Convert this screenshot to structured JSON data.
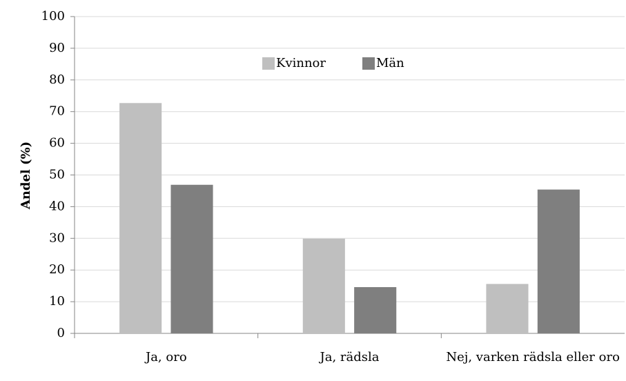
{
  "chart_data": {
    "type": "bar",
    "ylabel": "Andel (%)",
    "categories": [
      "Ja, oro",
      "Ja, rädsla",
      "Nej, varken rädsla eller oro"
    ],
    "series": [
      {
        "name": "Kvinnor",
        "color": "#bfbfbf",
        "values": [
          72.7,
          29.9,
          15.6
        ]
      },
      {
        "name": "Män",
        "color": "#7f7f7f",
        "values": [
          46.9,
          14.6,
          45.4
        ]
      }
    ],
    "ylim": [
      0,
      100
    ],
    "yticks": [
      0,
      10,
      20,
      30,
      40,
      50,
      60,
      70,
      80,
      90,
      100
    ],
    "grid": true,
    "legend": "top"
  }
}
